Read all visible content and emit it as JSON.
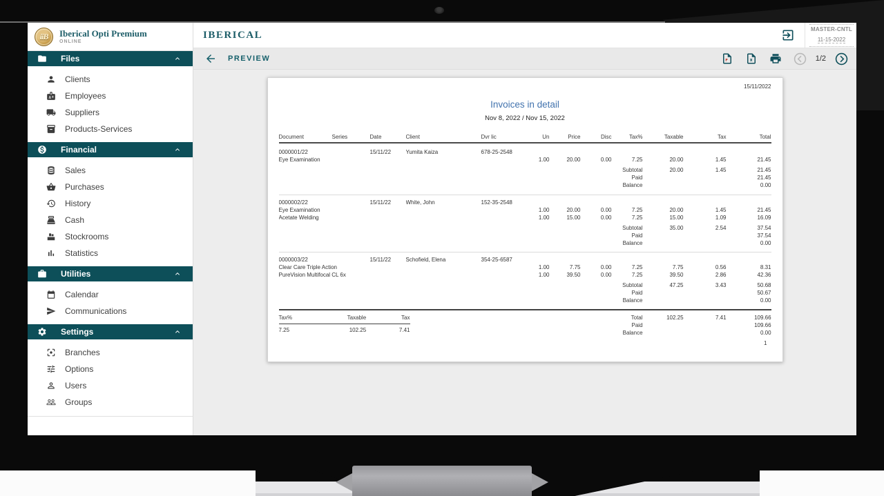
{
  "window": {
    "brand": {
      "title": "Iberical Opti Premium",
      "subtitle": "ONLINE",
      "logo_monogram": "iiB"
    },
    "header": {
      "app_name": "IBERICAL",
      "logout_icon": "logout-icon",
      "master_badge_line1": "MASTER-CNTL",
      "master_badge_line2": "11-15-2022"
    },
    "toolbar": {
      "back_label": "PREVIEW",
      "page_indicator": "1/2",
      "buttons": [
        "back-arrow-icon",
        "export-pdf-icon",
        "export-excel-icon",
        "print-icon",
        "previous-page-icon",
        "next-page-icon"
      ]
    }
  },
  "sidebar": {
    "sections": [
      {
        "label": "Files",
        "icon": "folder",
        "chevron": "chevron-up",
        "items": [
          {
            "label": "Clients",
            "icon": "person"
          },
          {
            "label": "Employees",
            "icon": "badge"
          },
          {
            "label": "Suppliers",
            "icon": "truck"
          },
          {
            "label": "Products-Services",
            "icon": "boxes"
          }
        ]
      },
      {
        "label": "Financial",
        "icon": "hand-coin",
        "chevron": "chevron-up",
        "items": [
          {
            "label": "Sales",
            "icon": "coins"
          },
          {
            "label": "Purchases",
            "icon": "basket"
          },
          {
            "label": "History",
            "icon": "history"
          },
          {
            "label": "Cash",
            "icon": "register"
          },
          {
            "label": "Stockrooms",
            "icon": "stockroom"
          },
          {
            "label": "Statistics",
            "icon": "chart"
          }
        ]
      },
      {
        "label": "Utilities",
        "icon": "toolbox",
        "chevron": "chevron-up",
        "items": [
          {
            "label": "Calendar",
            "icon": "calendar"
          },
          {
            "label": "Communications",
            "icon": "send"
          }
        ]
      },
      {
        "label": "Settings",
        "icon": "gear",
        "chevron": "chevron-up",
        "items": [
          {
            "label": "Branches",
            "icon": "hub"
          },
          {
            "label": "Options",
            "icon": "tune"
          },
          {
            "label": "Users",
            "icon": "user"
          },
          {
            "label": "Groups",
            "icon": "group"
          }
        ]
      }
    ]
  },
  "report": {
    "printed_date": "15/11/2022",
    "title": "Invoices in detail",
    "date_range": "Nov 8, 2022 / Nov 15, 2022",
    "columns": [
      "Document",
      "Series",
      "Date",
      "Client",
      "Dvr lic",
      "Un",
      "Price",
      "Disc",
      "Tax%",
      "Taxable",
      "Tax",
      "Total"
    ],
    "labels": {
      "subtotal": "Subtotal",
      "paid": "Paid",
      "balance": "Balance",
      "total": "Total"
    },
    "invoices": [
      {
        "document": "0000001/22",
        "series": "",
        "date": "15/11/22",
        "client": "Yumita Kaiza",
        "dvr_lic": "678-25-2548",
        "lines": [
          {
            "description": "Eye Examination",
            "un": "1.00",
            "price": "20.00",
            "disc": "0.00",
            "tax_pct": "7.25",
            "taxable": "20.00",
            "tax": "1.45",
            "total": "21.45"
          }
        ],
        "subtotal": {
          "taxable": "20.00",
          "tax": "1.45",
          "total": "21.45"
        },
        "paid": "21.45",
        "balance": "0.00"
      },
      {
        "document": "0000002/22",
        "series": "",
        "date": "15/11/22",
        "client": "White, John",
        "dvr_lic": "152-35-2548",
        "lines": [
          {
            "description": "Eye Examination",
            "un": "1.00",
            "price": "20.00",
            "disc": "0.00",
            "tax_pct": "7.25",
            "taxable": "20.00",
            "tax": "1.45",
            "total": "21.45"
          },
          {
            "description": "Acetate Welding",
            "un": "1.00",
            "price": "15.00",
            "disc": "0.00",
            "tax_pct": "7.25",
            "taxable": "15.00",
            "tax": "1.09",
            "total": "16.09"
          }
        ],
        "subtotal": {
          "taxable": "35.00",
          "tax": "2.54",
          "total": "37.54"
        },
        "paid": "37.54",
        "balance": "0.00"
      },
      {
        "document": "0000003/22",
        "series": "",
        "date": "15/11/22",
        "client": "Schofield, Elena",
        "dvr_lic": "354-25-6587",
        "lines": [
          {
            "description": "Clear Care Triple Action",
            "un": "1.00",
            "price": "7.75",
            "disc": "0.00",
            "tax_pct": "7.25",
            "taxable": "7.75",
            "tax": "0.56",
            "total": "8.31"
          },
          {
            "description": "PureVision Multifocal CL 6x",
            "un": "1.00",
            "price": "39.50",
            "disc": "0.00",
            "tax_pct": "7.25",
            "taxable": "39.50",
            "tax": "2.86",
            "total": "42.36"
          }
        ],
        "subtotal": {
          "taxable": "47.25",
          "tax": "3.43",
          "total": "50.68"
        },
        "paid": "50.67",
        "balance": "0.00"
      }
    ],
    "tax_summary": {
      "headers": [
        "Tax%",
        "Taxable",
        "Tax"
      ],
      "rows": [
        [
          "7.25",
          "102.25",
          "7.41"
        ]
      ]
    },
    "totals": {
      "taxable": "102.25",
      "tax": "7.41",
      "total": "109.66",
      "paid": "109.66",
      "balance": "0.00"
    },
    "page_number": "1"
  },
  "colors": {
    "section_teal": "#0d4f59",
    "brand_teal": "#1d5d68",
    "title_blue": "#4273ae",
    "gold": "#c79c4a",
    "main_bg": "#ededed",
    "toolbar_bg": "#e9e9e9"
  }
}
